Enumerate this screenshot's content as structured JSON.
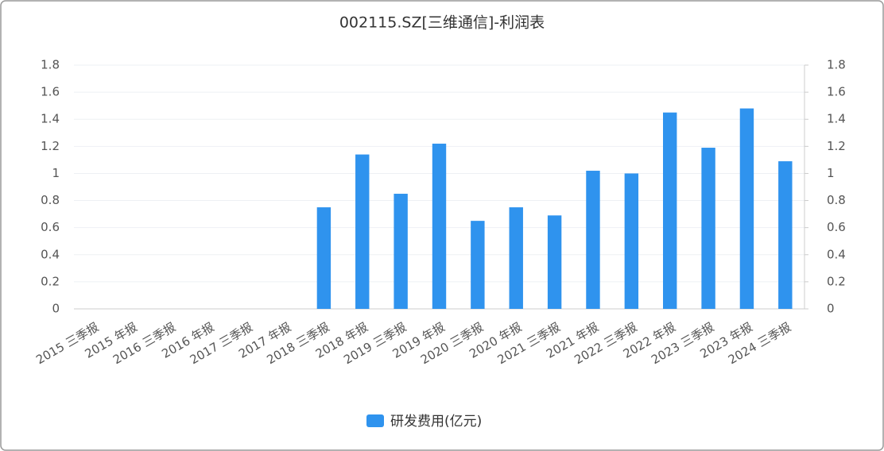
{
  "chart_data": {
    "type": "bar",
    "title": "002115.SZ[三维通信]-利润表",
    "categories": [
      "2015 三季报",
      "2015 年报",
      "2016 三季报",
      "2016 年报",
      "2017 三季报",
      "2017 年报",
      "2018 三季报",
      "2018 年报",
      "2019 三季报",
      "2019 年报",
      "2020 三季报",
      "2020 年报",
      "2021 三季报",
      "2021 年报",
      "2022 三季报",
      "2022 年报",
      "2023 三季报",
      "2023 年报",
      "2024 三季报"
    ],
    "series": [
      {
        "name": "研发费用(亿元)",
        "color": "#2f93ee",
        "values": [
          null,
          null,
          null,
          null,
          null,
          null,
          0.75,
          1.14,
          0.85,
          1.22,
          0.65,
          0.75,
          0.69,
          1.02,
          1.0,
          1.45,
          1.19,
          1.48,
          1.09
        ]
      }
    ],
    "ylim": [
      0,
      1.8
    ],
    "yticks": [
      0,
      0.2,
      0.4,
      0.6,
      0.8,
      1,
      1.2,
      1.4,
      1.6,
      1.8
    ],
    "y2lim": [
      0,
      1.8
    ],
    "y2ticks": [
      0,
      0.2,
      0.4,
      0.6,
      0.8,
      1,
      1.2,
      1.4,
      1.6,
      1.8
    ],
    "grid": true,
    "legend": "bottom"
  }
}
